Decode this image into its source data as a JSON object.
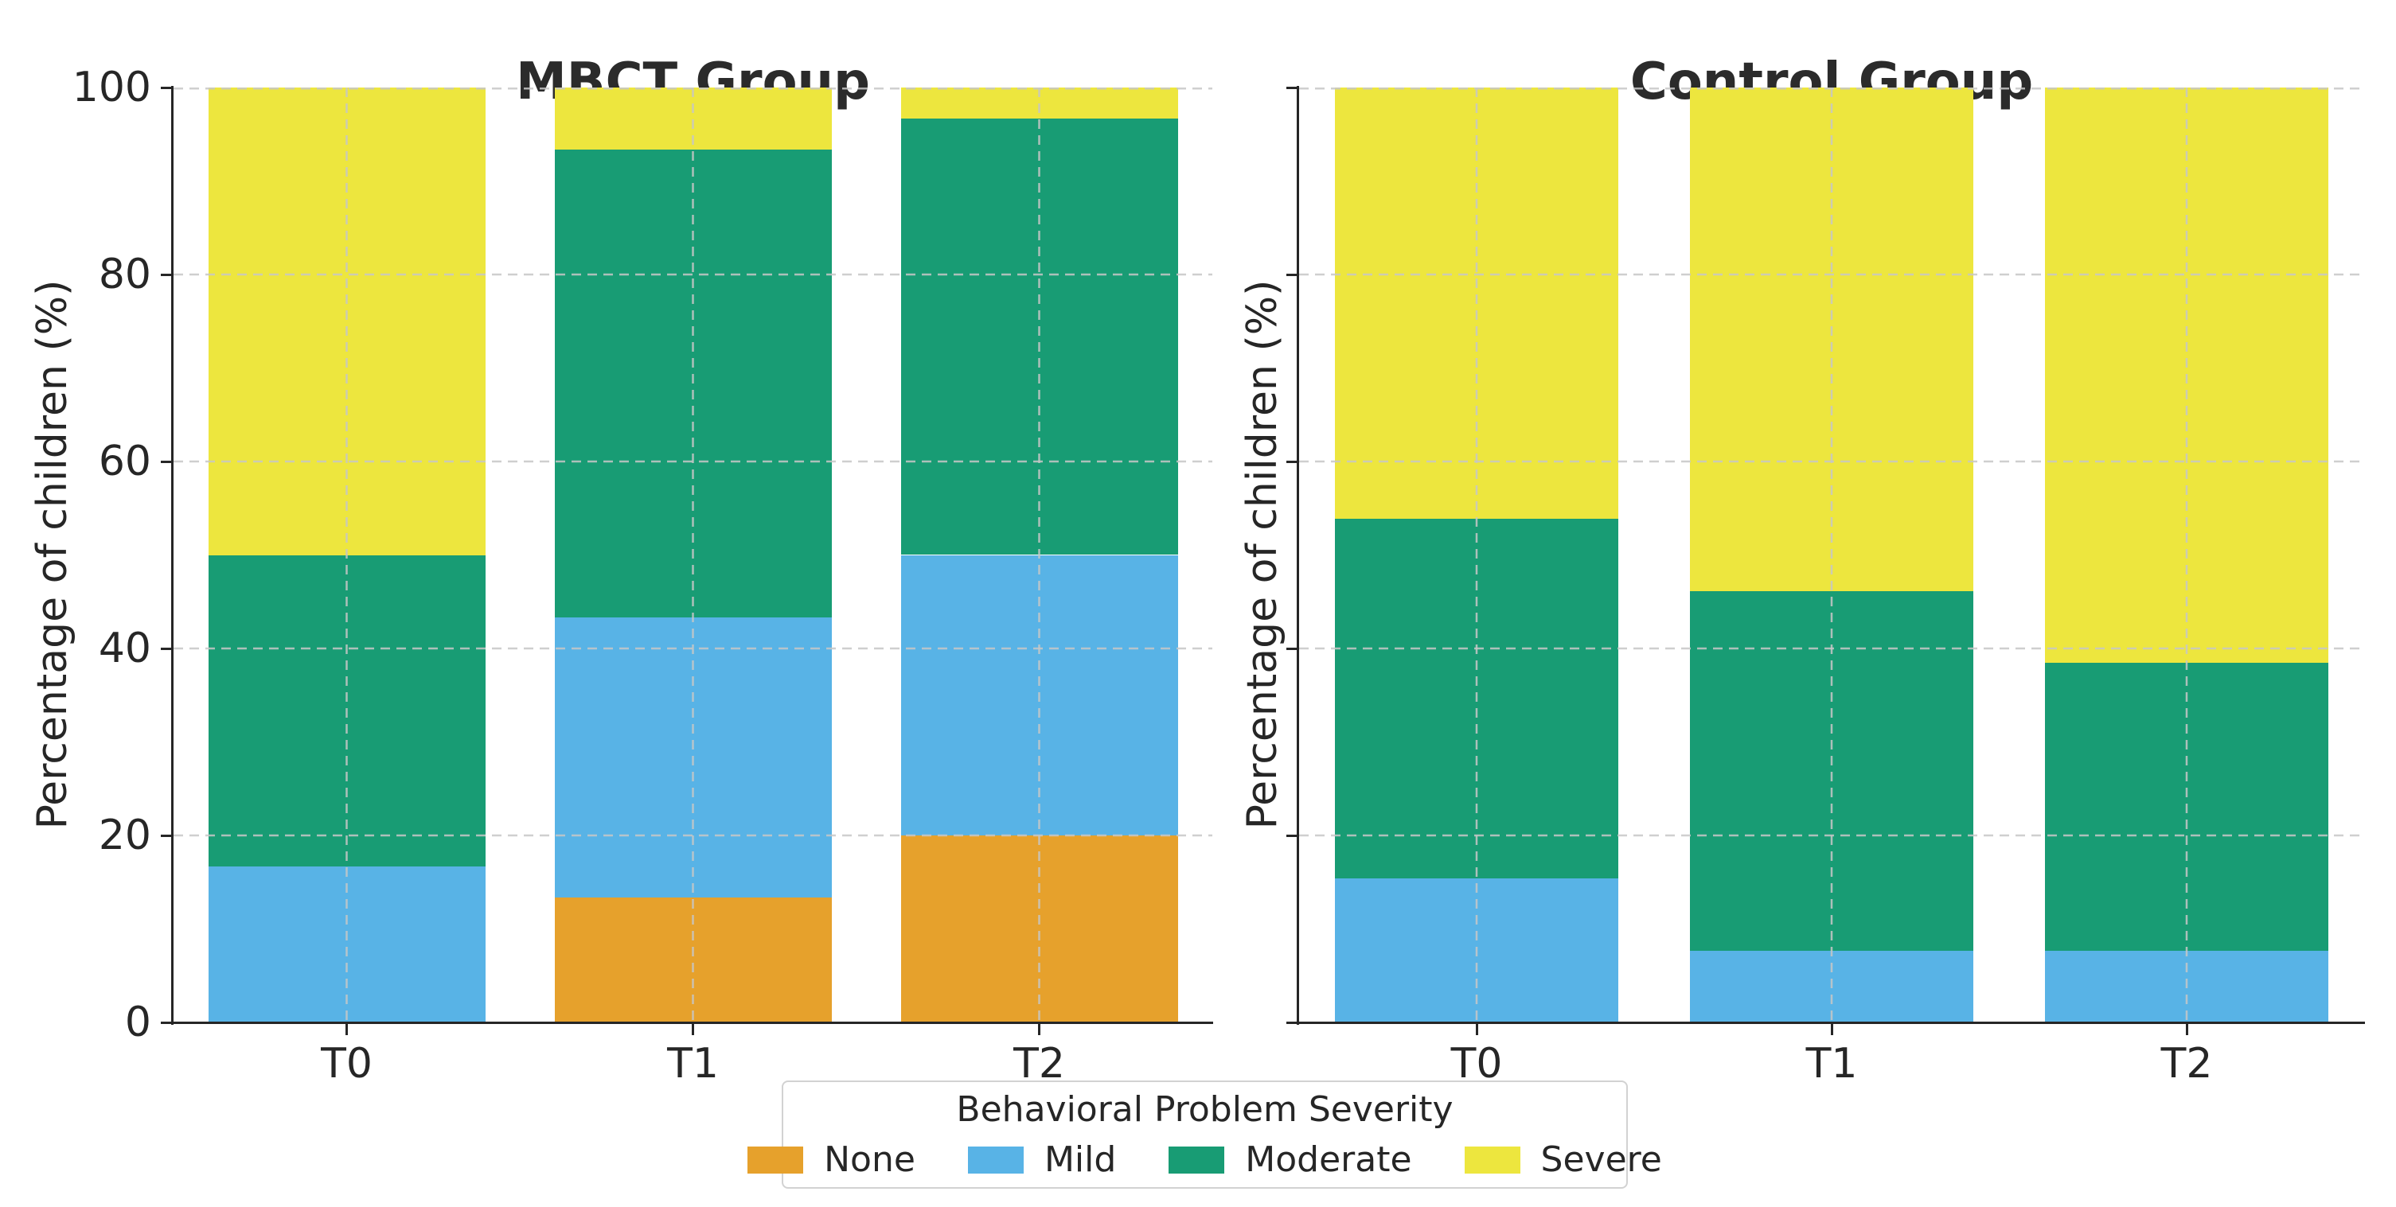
{
  "figure": {
    "background": "#ffffff",
    "text_color": "#262626",
    "grid_color": "#c7c7c7",
    "spine_color": "#262626"
  },
  "severity_colors": {
    "None": "#e6a12c",
    "Mild": "#58b3e6",
    "Moderate": "#189c74",
    "Severe": "#ede63e"
  },
  "chart_data": [
    {
      "type": "bar",
      "stacked": true,
      "title": "MBCT Group",
      "categories": [
        "T0",
        "T1",
        "T2"
      ],
      "series": [
        {
          "name": "None",
          "color": "#e6a12c",
          "values": [
            0,
            13.33,
            20
          ]
        },
        {
          "name": "Mild",
          "color": "#58b3e6",
          "values": [
            16.67,
            30,
            30
          ]
        },
        {
          "name": "Moderate",
          "color": "#189c74",
          "values": [
            33.33,
            50,
            46.67
          ]
        },
        {
          "name": "Severe",
          "color": "#ede63e",
          "values": [
            50,
            6.67,
            3.33
          ]
        }
      ],
      "xlabel": "",
      "ylabel": "Percentage of children (%)",
      "ylim": [
        0,
        100
      ],
      "yticks": [
        0,
        20,
        40,
        60,
        80,
        100
      ],
      "ytick_labels": [
        "0",
        "20",
        "40",
        "60",
        "80",
        "100"
      ],
      "show_ytick_labels": true,
      "grid": "dashed, drawn above bars",
      "legend_position": "shared, below figure"
    },
    {
      "type": "bar",
      "stacked": true,
      "title": "Control Group",
      "categories": [
        "T0",
        "T1",
        "T2"
      ],
      "series": [
        {
          "name": "None",
          "color": "#e6a12c",
          "values": [
            0,
            0,
            0
          ]
        },
        {
          "name": "Mild",
          "color": "#58b3e6",
          "values": [
            15.38,
            7.69,
            7.69
          ]
        },
        {
          "name": "Moderate",
          "color": "#189c74",
          "values": [
            38.46,
            38.46,
            30.77
          ]
        },
        {
          "name": "Severe",
          "color": "#ede63e",
          "values": [
            46.15,
            53.85,
            61.54
          ]
        }
      ],
      "xlabel": "",
      "ylabel": "Percentage of children (%)",
      "ylim": [
        0,
        100
      ],
      "yticks": [
        0,
        20,
        40,
        60,
        80,
        100
      ],
      "ytick_labels": [],
      "show_ytick_labels": false,
      "grid": "dashed, drawn above bars",
      "legend_position": "shared, below figure"
    }
  ],
  "legend": {
    "title": "Behavioral Problem Severity",
    "entries": [
      {
        "label": "None",
        "color": "#e6a12c"
      },
      {
        "label": "Mild",
        "color": "#58b3e6"
      },
      {
        "label": "Moderate",
        "color": "#189c74"
      },
      {
        "label": "Severe",
        "color": "#ede63e"
      }
    ]
  }
}
